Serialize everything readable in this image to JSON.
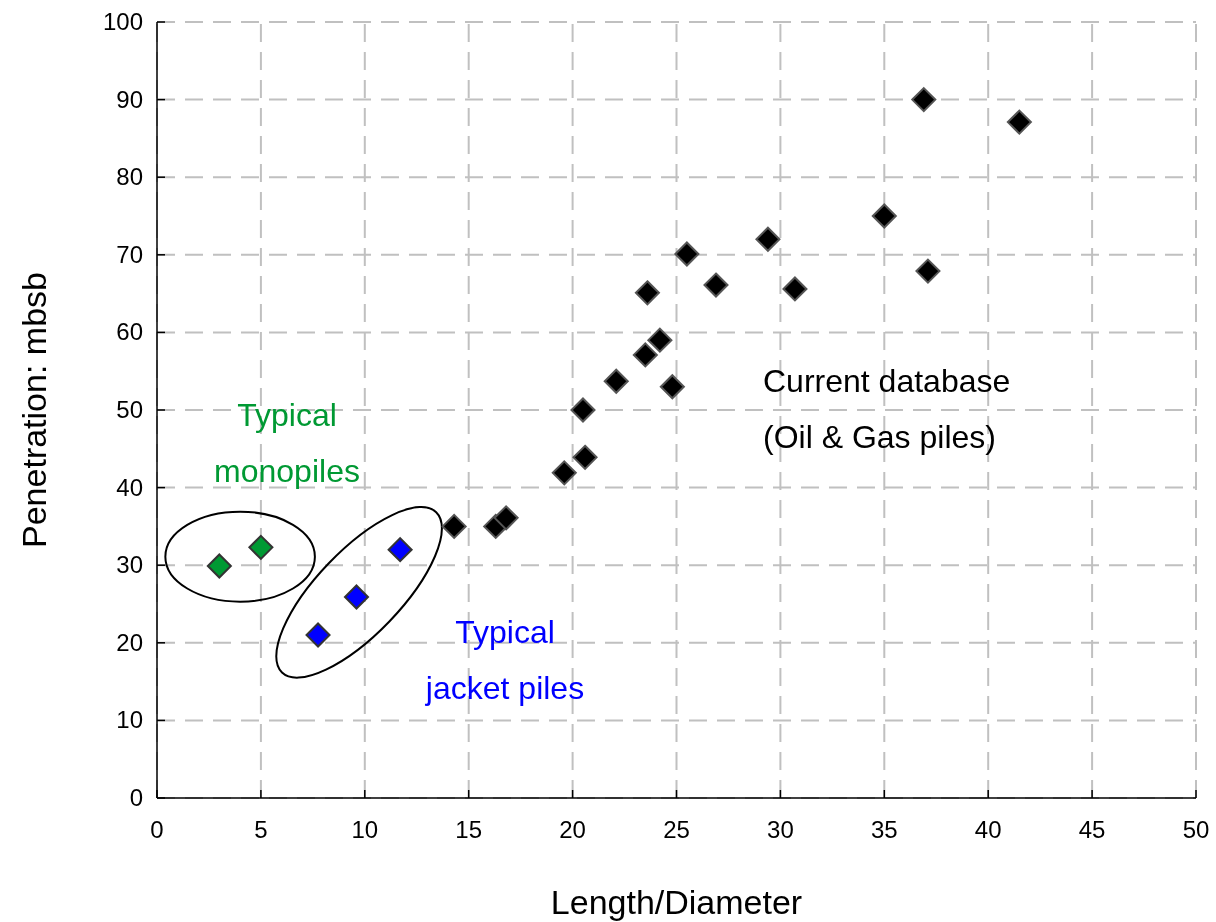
{
  "chart_data": {
    "type": "scatter",
    "xlabel": "Length/Diameter",
    "ylabel": "Penetration: mbsb",
    "xlim": [
      0,
      50
    ],
    "ylim": [
      0,
      100
    ],
    "xticks": [
      0,
      5,
      10,
      15,
      20,
      25,
      30,
      35,
      40,
      45,
      50
    ],
    "yticks": [
      0,
      10,
      20,
      30,
      40,
      50,
      60,
      70,
      80,
      90,
      100
    ],
    "grid": true,
    "marker": "diamond",
    "series": [
      {
        "name": "Typical monopiles",
        "color": "#009933",
        "x": [
          3.0,
          5.0
        ],
        "values": [
          29.9,
          32.3
        ]
      },
      {
        "name": "Typical jacket piles",
        "color": "#0000ff",
        "x": [
          7.75,
          9.6,
          11.7
        ],
        "values": [
          21,
          25.9,
          32
        ]
      },
      {
        "name": "Current database (Oil & Gas piles)",
        "color": "#000000",
        "x": [
          14.3,
          16.3,
          16.8,
          19.6,
          20.6,
          20.5,
          22.1,
          23.5,
          24.2,
          23.6,
          24.8,
          25.5,
          26.9,
          29.4,
          30.7,
          35,
          36.9,
          37.1,
          41.5
        ],
        "values": [
          35,
          35,
          36.1,
          41.9,
          43.9,
          50,
          53.7,
          57.1,
          59,
          65.1,
          53,
          70.1,
          66.1,
          72,
          65.6,
          75,
          90,
          67.9,
          87.1
        ]
      }
    ]
  }
}
